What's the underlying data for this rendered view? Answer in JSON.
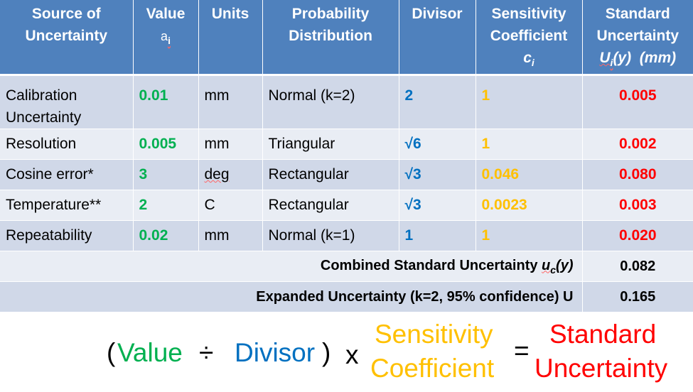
{
  "table": {
    "headers": {
      "source": [
        "Source of",
        "Uncertainty"
      ],
      "value": [
        "Value",
        "a",
        "i"
      ],
      "units": "Units",
      "distribution": [
        "Probability",
        "Distribution"
      ],
      "divisor": "Divisor",
      "sensitivity": [
        "Sensitivity",
        "Coefficient",
        "c",
        "i"
      ],
      "standard": [
        "Standard",
        "Uncertainty",
        "U",
        "i",
        "(y)",
        "(mm)"
      ]
    },
    "rows": [
      {
        "source": [
          "Calibration",
          "Uncertainty"
        ],
        "value": "0.01",
        "units": "mm",
        "distribution": "Normal (k=2)",
        "divisor": "2",
        "sensitivity": "1",
        "standard": "0.005"
      },
      {
        "source": [
          "Resolution"
        ],
        "value": "0.005",
        "units": "mm",
        "distribution": "Triangular",
        "divisor": "√6",
        "sensitivity": "1",
        "standard": "0.002"
      },
      {
        "source": [
          "Cosine error*"
        ],
        "value": "3",
        "units": "deg",
        "distribution": "Rectangular",
        "divisor": "√3",
        "sensitivity": "0.046",
        "standard": "0.080"
      },
      {
        "source": [
          "Temperature**"
        ],
        "value": "2",
        "units": "C",
        "distribution": "Rectangular",
        "divisor": "√3",
        "sensitivity": "0.0023",
        "standard": "0.003"
      },
      {
        "source": [
          "Repeatability"
        ],
        "value": "0.02",
        "units": "mm",
        "distribution": "Normal (k=1)",
        "divisor": "1",
        "sensitivity": "1",
        "standard": "0.020"
      }
    ],
    "combined": {
      "label_pre": "Combined Standard Uncertainty ",
      "label_u": "u",
      "label_sub": "c",
      "label_post": "(y)",
      "value": "0.082"
    },
    "expanded": {
      "label": "Expanded Uncertainty (k=2, 95% confidence) U",
      "value": "0.165"
    }
  },
  "formula": {
    "open": "(",
    "value": "Value",
    "divide": "÷",
    "divisor": "Divisor",
    "close": ")",
    "times": "x",
    "sensitivity": [
      "Sensitivity",
      "Coefficient"
    ],
    "equals": "=",
    "standard": [
      "Standard",
      "Uncertainty"
    ]
  },
  "colors": {
    "header": "#4f81bd",
    "green": "#00b050",
    "blue": "#0070c0",
    "orange": "#ffc000",
    "red": "#ff0000"
  }
}
